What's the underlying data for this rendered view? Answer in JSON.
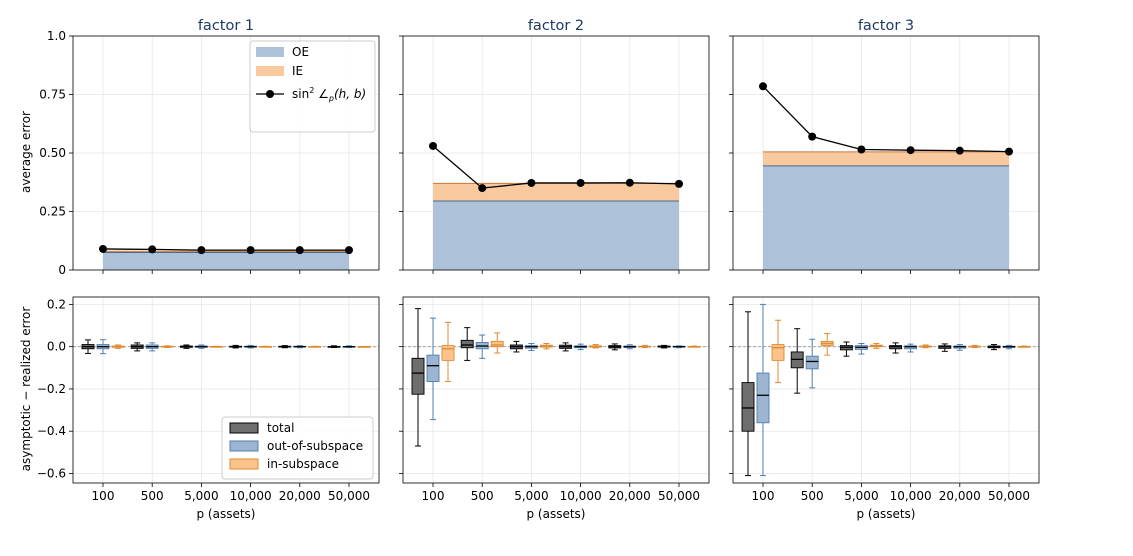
{
  "figure": {
    "top_ylabel": "average error",
    "bottom_ylabel": "asymptotic − realized error",
    "xlabel": "p (assets)",
    "categories": [
      "100",
      "500",
      "5,000",
      "10,000",
      "20,000",
      "50,000"
    ],
    "top_yticks": [
      "0",
      "0.25",
      "0.50",
      "0.75",
      "1.0"
    ],
    "bottom_yticks": [
      "0.2",
      "0.0",
      "−0.2",
      "−0.4",
      "−0.6"
    ],
    "colors": {
      "oe_fill": "#adc1d9",
      "oe_edge": "#4a6a8a",
      "ie_fill": "#f8c99e",
      "ie_edge": "#c8783a",
      "total_fill": "#6e6e6e",
      "out_fill": "#9cb5d3",
      "out_edge": "#4f7fb0",
      "in_fill": "#fbc28a",
      "in_edge": "#e08a30",
      "title": "#1f3a66"
    }
  },
  "legend_top": {
    "oe": "OE",
    "ie": "IE",
    "sin_prefix": "sin",
    "sin_sup": "2",
    "sin_angle": " ∠",
    "sin_sub": "p",
    "sin_args": "(h, b)"
  },
  "legend_bottom": {
    "total": "total",
    "out": "out-of-subspace",
    "in": "in-subspace"
  },
  "chart_data": [
    {
      "panel": "top",
      "title": "factor 1",
      "type": "area",
      "categories": [
        "100",
        "500",
        "5,000",
        "10,000",
        "20,000",
        "50,000"
      ],
      "ylim": [
        0,
        1.0
      ],
      "grid": true,
      "legend": "upper-right",
      "series": [
        {
          "name": "OE",
          "values": [
            0.075,
            0.075,
            0.075,
            0.075,
            0.075,
            0.075
          ]
        },
        {
          "name": "IE",
          "values": [
            0.005,
            0.005,
            0.005,
            0.005,
            0.005,
            0.005
          ]
        },
        {
          "name": "sin² ∠p(h, b)",
          "values": [
            0.09,
            0.088,
            0.085,
            0.085,
            0.085,
            0.085
          ]
        }
      ]
    },
    {
      "panel": "top",
      "title": "factor 2",
      "type": "area",
      "categories": [
        "100",
        "500",
        "5,000",
        "10,000",
        "20,000",
        "50,000"
      ],
      "ylim": [
        0,
        1.0
      ],
      "grid": true,
      "series": [
        {
          "name": "OE",
          "values": [
            0.295,
            0.295,
            0.295,
            0.295,
            0.295,
            0.295
          ]
        },
        {
          "name": "IE",
          "values": [
            0.075,
            0.075,
            0.075,
            0.075,
            0.075,
            0.075
          ]
        },
        {
          "name": "sin² ∠p(h, b)",
          "values": [
            0.53,
            0.35,
            0.372,
            0.372,
            0.373,
            0.368
          ]
        }
      ]
    },
    {
      "panel": "top",
      "title": "factor 3",
      "type": "area",
      "categories": [
        "100",
        "500",
        "5,000",
        "10,000",
        "20,000",
        "50,000"
      ],
      "ylim": [
        0,
        1.0
      ],
      "grid": true,
      "series": [
        {
          "name": "OE",
          "values": [
            0.445,
            0.445,
            0.445,
            0.445,
            0.445,
            0.445
          ]
        },
        {
          "name": "IE",
          "values": [
            0.06,
            0.06,
            0.06,
            0.06,
            0.06,
            0.06
          ]
        },
        {
          "name": "sin² ∠p(h, b)",
          "values": [
            0.785,
            0.57,
            0.515,
            0.512,
            0.51,
            0.506
          ]
        }
      ]
    },
    {
      "panel": "bottom",
      "type": "box",
      "factor": "factor 1",
      "categories": [
        "100",
        "500",
        "5,000",
        "10,000",
        "20,000",
        "50,000"
      ],
      "ylim": [
        -0.645,
        0.235
      ],
      "grid": true,
      "legend": "lower-right",
      "series": [
        {
          "name": "total",
          "boxes": [
            {
              "whislo": -0.032,
              "q1": -0.01,
              "med": 0.0,
              "q3": 0.01,
              "whishi": 0.032
            },
            {
              "whislo": -0.02,
              "q1": -0.008,
              "med": 0.0,
              "q3": 0.008,
              "whishi": 0.018
            },
            {
              "whislo": -0.008,
              "q1": -0.003,
              "med": 0.0,
              "q3": 0.003,
              "whishi": 0.008
            },
            {
              "whislo": -0.006,
              "q1": -0.002,
              "med": 0.0,
              "q3": 0.002,
              "whishi": 0.006
            },
            {
              "whislo": -0.005,
              "q1": -0.002,
              "med": 0.0,
              "q3": 0.002,
              "whishi": 0.005
            },
            {
              "whislo": -0.004,
              "q1": -0.001,
              "med": 0.0,
              "q3": 0.001,
              "whishi": 0.004
            }
          ]
        },
        {
          "name": "out-of-subspace",
          "boxes": [
            {
              "whislo": -0.033,
              "q1": -0.01,
              "med": 0.0,
              "q3": 0.01,
              "whishi": 0.033
            },
            {
              "whislo": -0.02,
              "q1": -0.008,
              "med": 0.0,
              "q3": 0.008,
              "whishi": 0.018
            },
            {
              "whislo": -0.008,
              "q1": -0.003,
              "med": 0.0,
              "q3": 0.003,
              "whishi": 0.008
            },
            {
              "whislo": -0.006,
              "q1": -0.002,
              "med": 0.0,
              "q3": 0.002,
              "whishi": 0.006
            },
            {
              "whislo": -0.005,
              "q1": -0.002,
              "med": 0.0,
              "q3": 0.002,
              "whishi": 0.005
            },
            {
              "whislo": -0.004,
              "q1": -0.001,
              "med": 0.0,
              "q3": 0.001,
              "whishi": 0.004
            }
          ]
        },
        {
          "name": "in-subspace",
          "boxes": [
            {
              "whislo": -0.008,
              "q1": -0.003,
              "med": 0.0,
              "q3": 0.003,
              "whishi": 0.008
            },
            {
              "whislo": -0.004,
              "q1": -0.002,
              "med": 0.0,
              "q3": 0.002,
              "whishi": 0.004
            },
            {
              "whislo": -0.002,
              "q1": -0.001,
              "med": 0.0,
              "q3": 0.001,
              "whishi": 0.002
            },
            {
              "whislo": -0.002,
              "q1": -0.001,
              "med": 0.0,
              "q3": 0.001,
              "whishi": 0.002
            },
            {
              "whislo": -0.002,
              "q1": -0.001,
              "med": 0.0,
              "q3": 0.001,
              "whishi": 0.002
            },
            {
              "whislo": -0.001,
              "q1": -0.0005,
              "med": 0.0,
              "q3": 0.0005,
              "whishi": 0.001
            }
          ]
        }
      ]
    },
    {
      "panel": "bottom",
      "type": "box",
      "factor": "factor 2",
      "categories": [
        "100",
        "500",
        "5,000",
        "10,000",
        "20,000",
        "50,000"
      ],
      "ylim": [
        -0.645,
        0.235
      ],
      "grid": true,
      "series": [
        {
          "name": "total",
          "boxes": [
            {
              "whislo": -0.47,
              "q1": -0.225,
              "med": -0.125,
              "q3": -0.055,
              "whishi": 0.18
            },
            {
              "whislo": -0.065,
              "q1": -0.005,
              "med": 0.008,
              "q3": 0.03,
              "whishi": 0.09
            },
            {
              "whislo": -0.025,
              "q1": -0.01,
              "med": 0.0,
              "q3": 0.008,
              "whishi": 0.025
            },
            {
              "whislo": -0.02,
              "q1": -0.008,
              "med": 0.0,
              "q3": 0.007,
              "whishi": 0.018
            },
            {
              "whislo": -0.015,
              "q1": -0.006,
              "med": 0.0,
              "q3": 0.005,
              "whishi": 0.013
            },
            {
              "whislo": -0.006,
              "q1": -0.002,
              "med": 0.0,
              "q3": 0.003,
              "whishi": 0.006
            }
          ]
        },
        {
          "name": "out-of-subspace",
          "boxes": [
            {
              "whislo": -0.345,
              "q1": -0.165,
              "med": -0.09,
              "q3": -0.04,
              "whishi": 0.135
            },
            {
              "whislo": -0.055,
              "q1": -0.01,
              "med": 0.003,
              "q3": 0.02,
              "whishi": 0.055
            },
            {
              "whislo": -0.018,
              "q1": -0.007,
              "med": 0.0,
              "q3": 0.005,
              "whishi": 0.015
            },
            {
              "whislo": -0.014,
              "q1": -0.005,
              "med": 0.0,
              "q3": 0.004,
              "whishi": 0.012
            },
            {
              "whislo": -0.01,
              "q1": -0.004,
              "med": 0.0,
              "q3": 0.003,
              "whishi": 0.009
            },
            {
              "whislo": -0.005,
              "q1": -0.002,
              "med": 0.0,
              "q3": 0.002,
              "whishi": 0.004
            }
          ]
        },
        {
          "name": "in-subspace",
          "boxes": [
            {
              "whislo": -0.165,
              "q1": -0.065,
              "med": -0.01,
              "q3": 0.005,
              "whishi": 0.115
            },
            {
              "whislo": -0.03,
              "q1": 0.0,
              "med": 0.008,
              "q3": 0.025,
              "whishi": 0.065
            },
            {
              "whislo": -0.01,
              "q1": -0.002,
              "med": 0.002,
              "q3": 0.007,
              "whishi": 0.015
            },
            {
              "whislo": -0.006,
              "q1": -0.002,
              "med": 0.0,
              "q3": 0.004,
              "whishi": 0.01
            },
            {
              "whislo": -0.004,
              "q1": -0.001,
              "med": 0.0,
              "q3": 0.002,
              "whishi": 0.006
            },
            {
              "whislo": -0.002,
              "q1": -0.001,
              "med": 0.0,
              "q3": 0.001,
              "whishi": 0.003
            }
          ]
        }
      ]
    },
    {
      "panel": "bottom",
      "type": "box",
      "factor": "factor 3",
      "categories": [
        "100",
        "500",
        "5,000",
        "10,000",
        "20,000",
        "50,000"
      ],
      "ylim": [
        -0.645,
        0.235
      ],
      "grid": true,
      "series": [
        {
          "name": "total",
          "boxes": [
            {
              "whislo": -0.61,
              "q1": -0.4,
              "med": -0.29,
              "q3": -0.17,
              "whishi": 0.165
            },
            {
              "whislo": -0.22,
              "q1": -0.1,
              "med": -0.06,
              "q3": -0.025,
              "whishi": 0.085
            },
            {
              "whislo": -0.045,
              "q1": -0.015,
              "med": -0.003,
              "q3": 0.005,
              "whishi": 0.022
            },
            {
              "whislo": -0.03,
              "q1": -0.01,
              "med": 0.0,
              "q3": 0.005,
              "whishi": 0.018
            },
            {
              "whislo": -0.022,
              "q1": -0.008,
              "med": 0.0,
              "q3": 0.004,
              "whishi": 0.013
            },
            {
              "whislo": -0.014,
              "q1": -0.005,
              "med": 0.0,
              "q3": 0.003,
              "whishi": 0.01
            }
          ]
        },
        {
          "name": "out-of-subspace",
          "boxes": [
            {
              "whislo": -0.61,
              "q1": -0.36,
              "med": -0.23,
              "q3": -0.125,
              "whishi": 0.2
            },
            {
              "whislo": -0.195,
              "q1": -0.105,
              "med": -0.07,
              "q3": -0.045,
              "whishi": 0.035
            },
            {
              "whislo": -0.035,
              "q1": -0.013,
              "med": -0.003,
              "q3": 0.005,
              "whishi": 0.015
            },
            {
              "whislo": -0.025,
              "q1": -0.01,
              "med": 0.0,
              "q3": 0.004,
              "whishi": 0.012
            },
            {
              "whislo": -0.017,
              "q1": -0.007,
              "med": 0.0,
              "q3": 0.003,
              "whishi": 0.01
            },
            {
              "whislo": -0.01,
              "q1": -0.004,
              "med": 0.0,
              "q3": 0.002,
              "whishi": 0.006
            }
          ]
        },
        {
          "name": "in-subspace",
          "boxes": [
            {
              "whislo": -0.17,
              "q1": -0.065,
              "med": -0.005,
              "q3": 0.01,
              "whishi": 0.125
            },
            {
              "whislo": -0.04,
              "q1": 0.005,
              "med": 0.015,
              "q3": 0.025,
              "whishi": 0.062
            },
            {
              "whislo": -0.008,
              "q1": 0.0,
              "med": 0.003,
              "q3": 0.007,
              "whishi": 0.015
            },
            {
              "whislo": -0.005,
              "q1": -0.001,
              "med": 0.0,
              "q3": 0.003,
              "whishi": 0.008
            },
            {
              "whislo": -0.004,
              "q1": -0.001,
              "med": 0.0,
              "q3": 0.002,
              "whishi": 0.006
            },
            {
              "whislo": -0.002,
              "q1": -0.001,
              "med": 0.0,
              "q3": 0.001,
              "whishi": 0.003
            }
          ]
        }
      ]
    }
  ]
}
